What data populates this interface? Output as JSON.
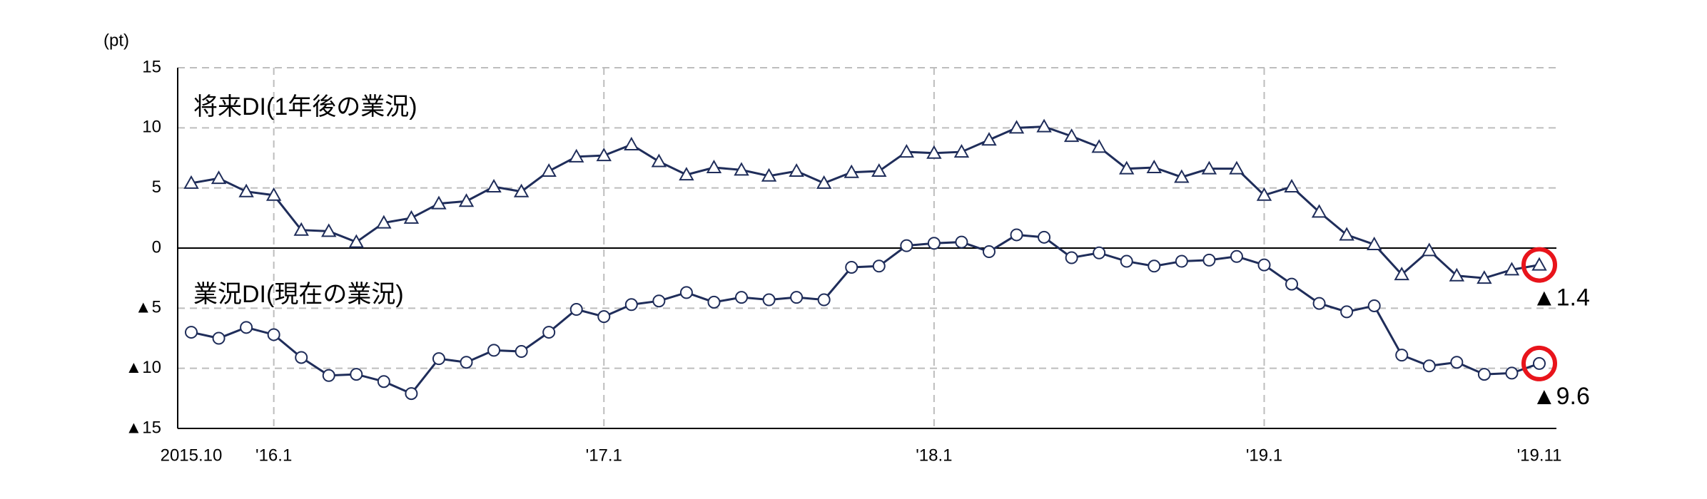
{
  "chart_data": {
    "type": "line",
    "unit_label": "(pt)",
    "categories": [
      "2015.10",
      null,
      null,
      "'16.1",
      null,
      null,
      null,
      null,
      null,
      null,
      null,
      null,
      null,
      null,
      null,
      "'17.1",
      null,
      null,
      null,
      null,
      null,
      null,
      null,
      null,
      null,
      null,
      null,
      "'18.1",
      null,
      null,
      null,
      null,
      null,
      null,
      null,
      null,
      null,
      null,
      null,
      "'19.1",
      null,
      null,
      null,
      null,
      null,
      null,
      null,
      null,
      null,
      "'19.11"
    ],
    "series": [
      {
        "name": "将来DI(1年後の業況)",
        "color": "#1f2d5a",
        "marker": "triangle",
        "end_label": "▲1.4",
        "values": [
          5.4,
          5.8,
          4.7,
          4.4,
          1.5,
          1.4,
          0.5,
          2.1,
          2.5,
          3.7,
          3.9,
          5.1,
          4.7,
          6.4,
          7.6,
          7.7,
          8.6,
          7.2,
          6.1,
          6.7,
          6.5,
          6.0,
          6.4,
          5.4,
          6.3,
          6.4,
          8.0,
          7.9,
          8.0,
          9.0,
          10.0,
          10.1,
          9.3,
          8.4,
          6.6,
          6.7,
          5.9,
          6.6,
          6.6,
          4.4,
          5.1,
          3.0,
          1.1,
          0.3,
          -2.2,
          -0.2,
          -2.3,
          -2.5,
          -1.8,
          -1.4
        ]
      },
      {
        "name": "業況DI(現在の業況)",
        "color": "#1f2d5a",
        "marker": "circle",
        "end_label": "▲9.6",
        "values": [
          -7.0,
          -7.5,
          -6.6,
          -7.2,
          -9.1,
          -10.6,
          -10.5,
          -11.1,
          -12.1,
          -9.2,
          -9.5,
          -8.5,
          -8.6,
          -7.0,
          -5.1,
          -5.7,
          -4.7,
          -4.4,
          -3.7,
          -4.5,
          -4.1,
          -4.3,
          -4.1,
          -4.3,
          -1.6,
          -1.5,
          0.2,
          0.4,
          0.5,
          -0.3,
          1.1,
          0.9,
          -0.8,
          -0.4,
          -1.1,
          -1.5,
          -1.1,
          -1.0,
          -0.7,
          -1.4,
          -3.0,
          -4.6,
          -5.3,
          -4.8,
          -8.9,
          -9.8,
          -9.5,
          -10.5,
          -10.4,
          -9.6
        ]
      }
    ],
    "ylim": [
      -15,
      15
    ],
    "yticks": [
      {
        "value": -15,
        "label": "▲15"
      },
      {
        "value": -10,
        "label": "▲10"
      },
      {
        "value": -5,
        "label": "▲5"
      },
      0,
      5,
      10,
      15
    ],
    "grid": true,
    "highlight_color": "#e8141b"
  }
}
